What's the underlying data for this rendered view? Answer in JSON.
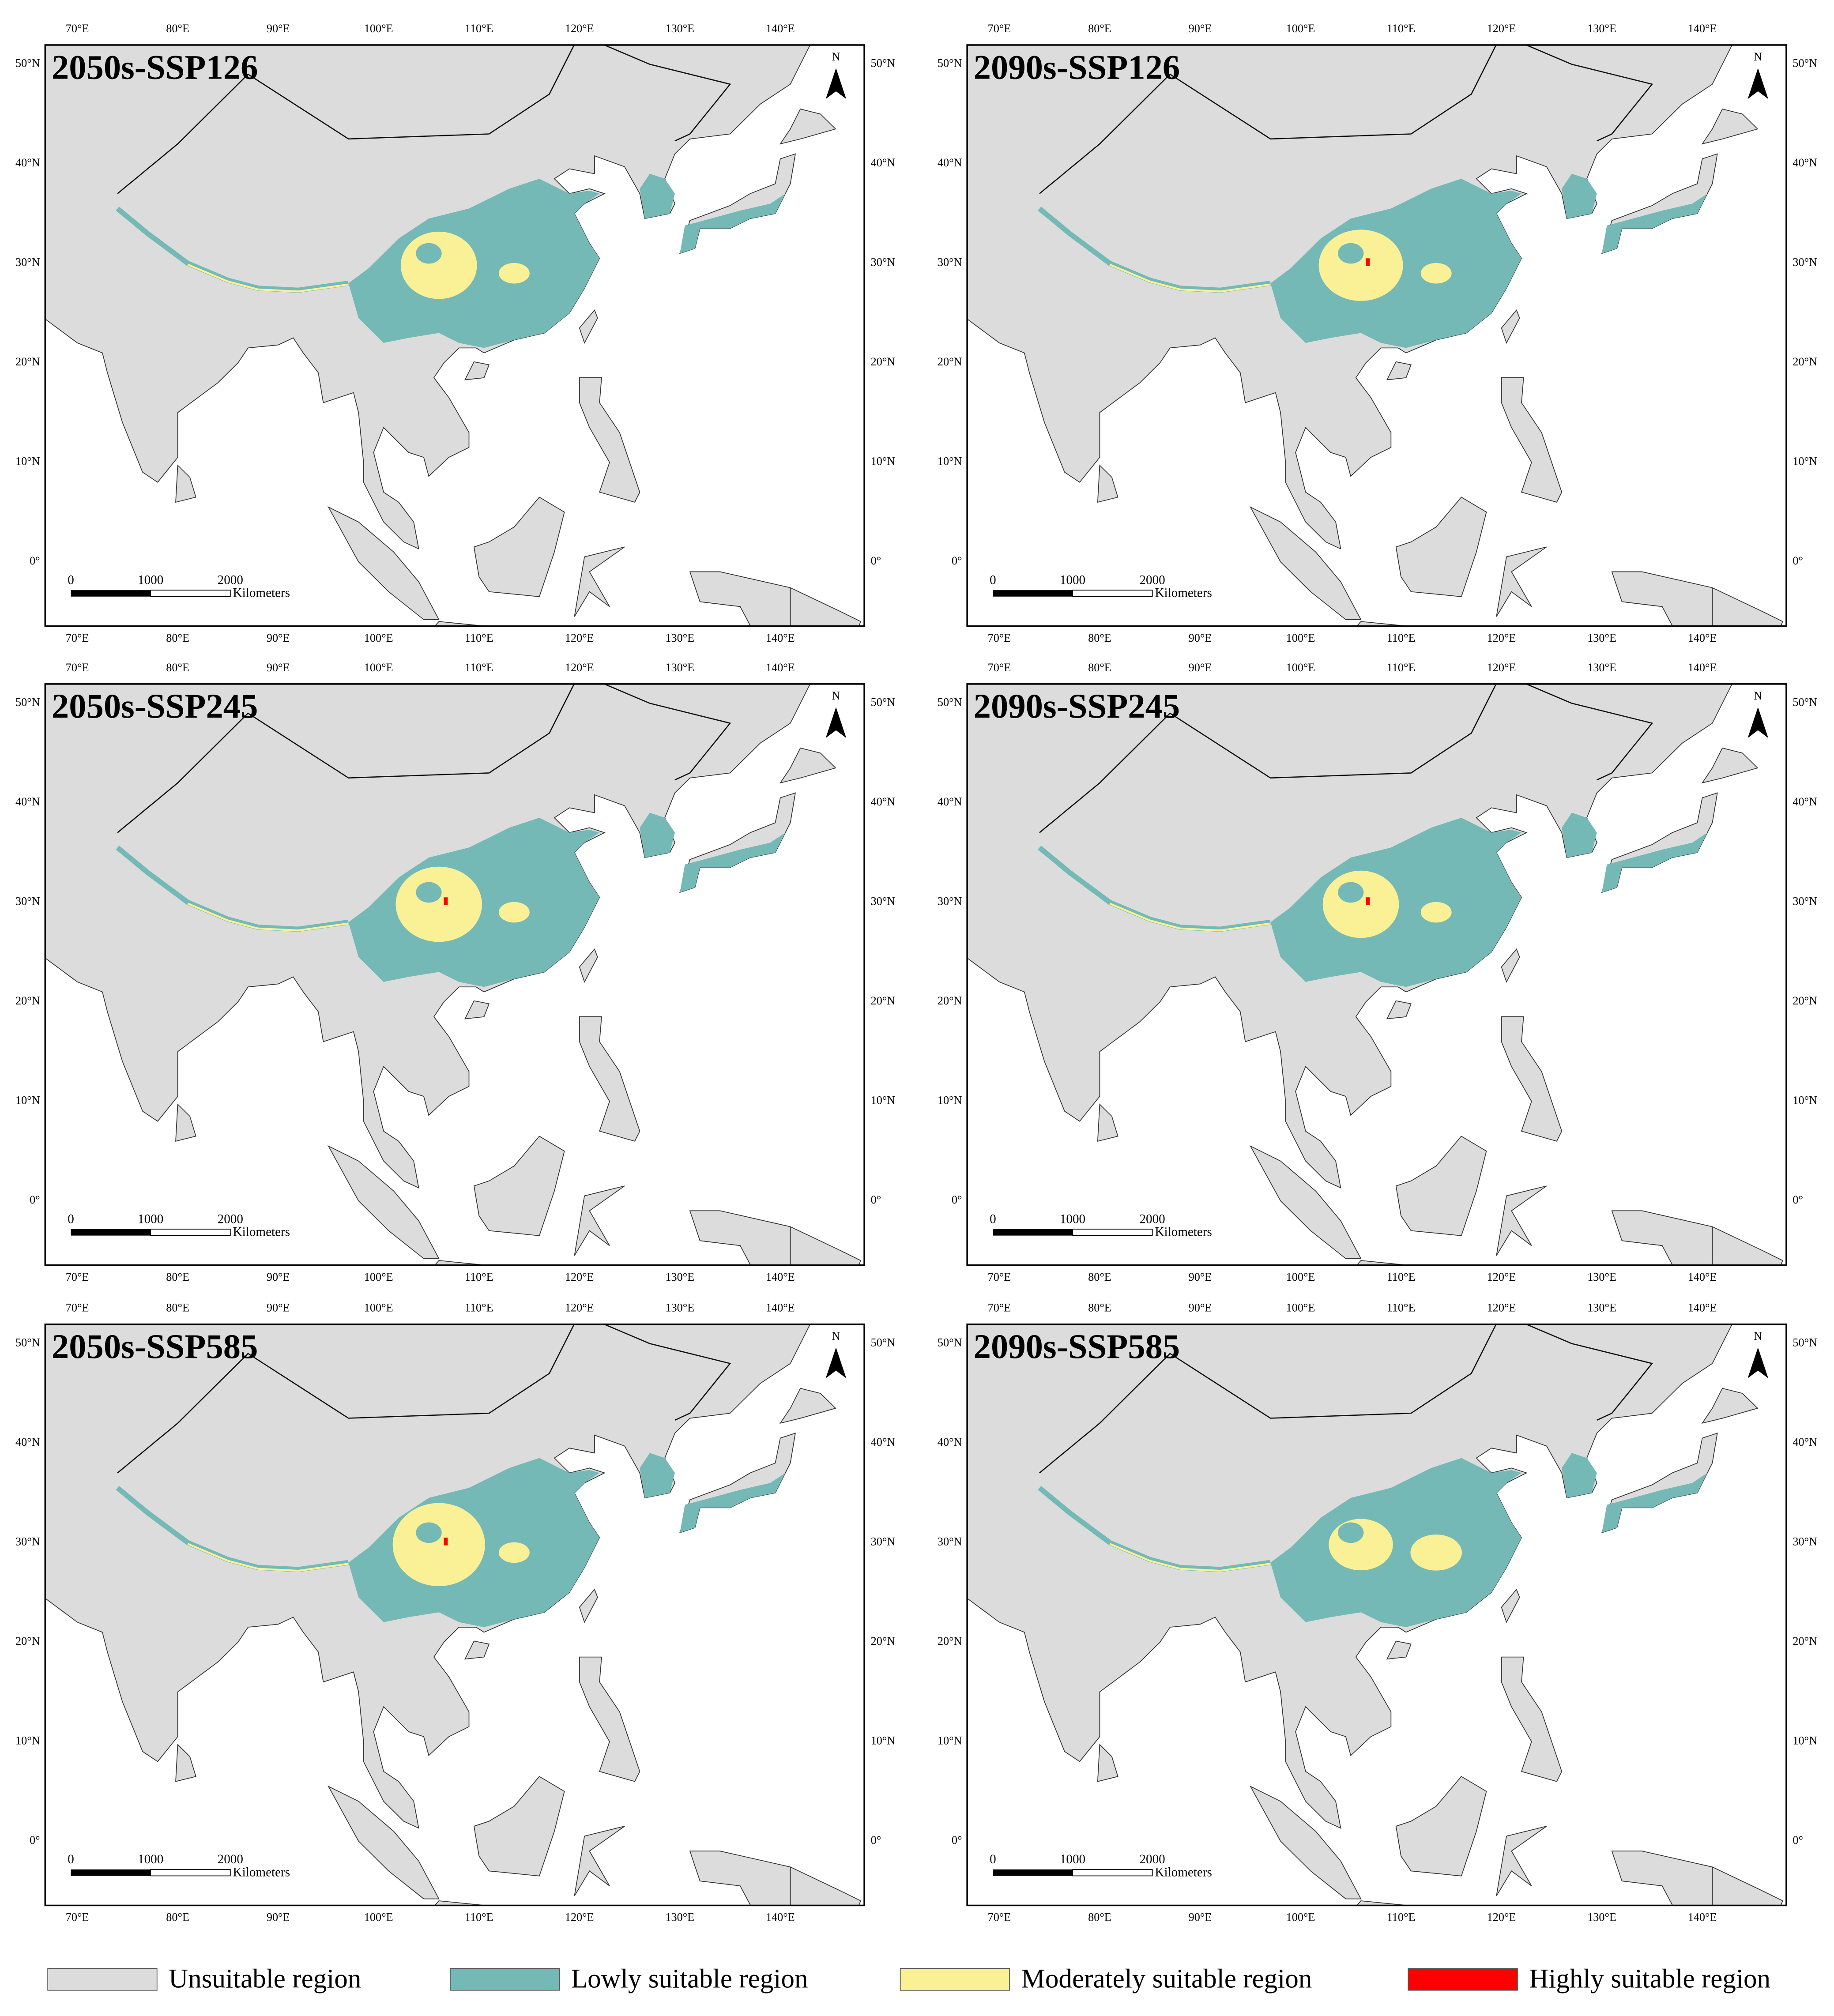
{
  "panels": [
    {
      "title": "2050s-SSP126"
    },
    {
      "title": "2090s-SSP126"
    },
    {
      "title": "2050s-SSP245"
    },
    {
      "title": "2090s-SSP245"
    },
    {
      "title": "2050s-SSP585"
    },
    {
      "title": "2090s-SSP585"
    }
  ],
  "lon_labels": [
    "70°E",
    "80°E",
    "90°E",
    "100°E",
    "110°E",
    "120°E",
    "130°E",
    "140°E"
  ],
  "lat_labels": [
    "50°N",
    "40°N",
    "30°N",
    "20°N",
    "10°N",
    "0°"
  ],
  "scale_bar": {
    "labels": [
      "0",
      "1000",
      "2000"
    ],
    "unit": "Kilometers"
  },
  "north_label": "N",
  "legend": [
    {
      "label": "Unsuitable region",
      "color": "#dcdcdc"
    },
    {
      "label": "Lowly suitable region",
      "color": "#74b9b5"
    },
    {
      "label": "Moderately suitable region",
      "color": "#faf096"
    },
    {
      "label": "Highly suitable region",
      "color": "#ff0000"
    }
  ]
}
